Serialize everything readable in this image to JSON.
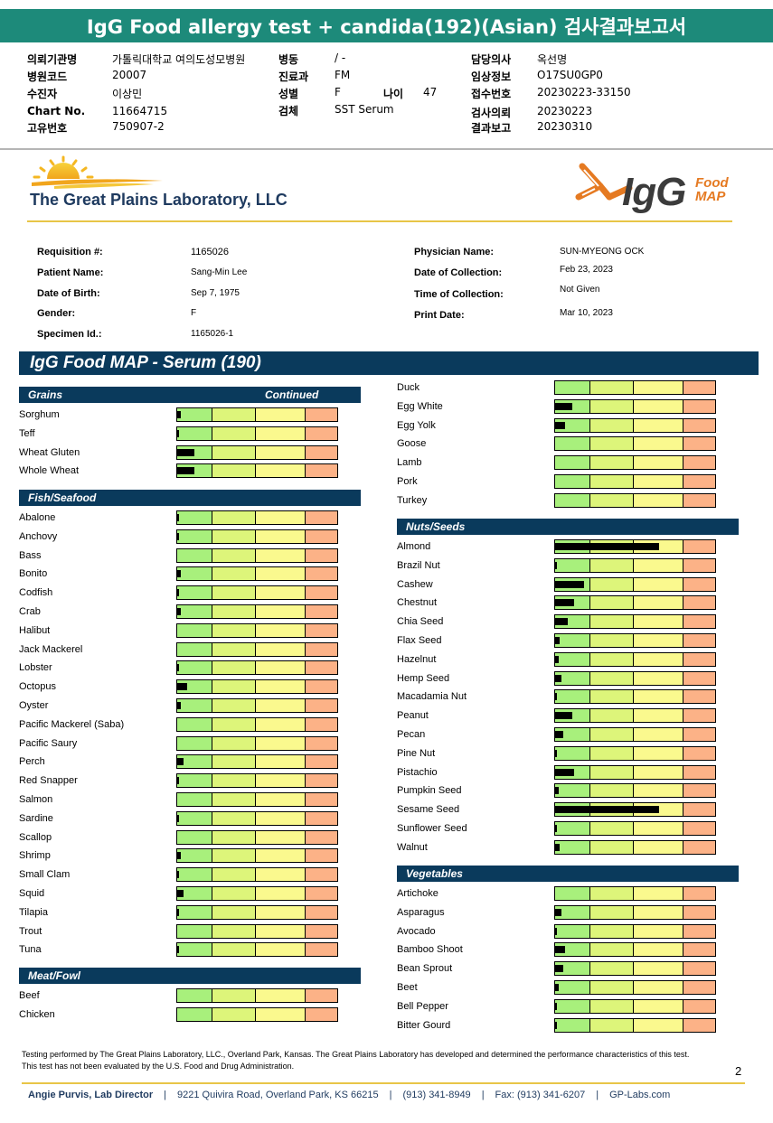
{
  "report_title": "IgG Food allergy test + candida(192)(Asian) 검사결과보고서",
  "header": {
    "col1": [
      {
        "label": "의뢰기관명",
        "value": "가톨릭대학교 여의도성모병원"
      },
      {
        "label": "병원코드",
        "value": "20007"
      },
      {
        "label": "수진자",
        "value": "이상민"
      },
      {
        "label": "Chart No.",
        "value": "11664715"
      },
      {
        "label": "고유번호",
        "value": "750907-2"
      }
    ],
    "col2": [
      {
        "label": "병동",
        "value": "/ -"
      },
      {
        "label": "진료과",
        "value": "FM"
      },
      {
        "label": "성별",
        "value": "F"
      },
      {
        "label": "검체",
        "value": "SST Serum"
      }
    ],
    "age_label": "나이",
    "age_value": "47",
    "col3": [
      {
        "label": "담당의사",
        "value": "옥선명"
      },
      {
        "label": "임상정보",
        "value": "O17SU0GP0"
      },
      {
        "label": "접수번호",
        "value": "20230223-33150"
      },
      {
        "label": "검사의뢰",
        "value": "20230223"
      },
      {
        "label": "결과보고",
        "value": "20230310"
      }
    ]
  },
  "lab_name": "The Great Plains Laboratory, LLC",
  "igg_logo": {
    "main": "IgG",
    "food": "Food",
    "map": "MAP"
  },
  "patient_info": {
    "left": [
      {
        "label": "Requisition #:",
        "value": "1165026"
      },
      {
        "label": "Patient Name:",
        "value": "Sang-Min Lee"
      },
      {
        "label": "Date of Birth:",
        "value": "Sep 7, 1975"
      },
      {
        "label": "Gender:",
        "value": "F"
      },
      {
        "label": "Specimen Id.:",
        "value": "1165026-1"
      }
    ],
    "right": [
      {
        "label": "Physician Name:",
        "value": "SUN-MYEONG OCK"
      },
      {
        "label": "Date of Collection:",
        "value": "Feb 23, 2023"
      },
      {
        "label": "Time of Collection:",
        "value": "Not Given"
      },
      {
        "label": "Print Date:",
        "value": "Mar 10, 2023"
      }
    ]
  },
  "panel_title": "IgG Food MAP - Serum (190)",
  "continued_label": "Continued",
  "sections": [
    {
      "title": "Grains",
      "continued": true,
      "column": "left",
      "items": [
        {
          "name": "Sorghum",
          "level": 0.02
        },
        {
          "name": "Teff",
          "level": 0.01
        },
        {
          "name": "Wheat Gluten",
          "level": 0.11
        },
        {
          "name": "Whole Wheat",
          "level": 0.11
        }
      ]
    },
    {
      "title": "Fish/Seafood",
      "continued": false,
      "column": "left",
      "items": [
        {
          "name": "Abalone",
          "level": 0.01
        },
        {
          "name": "Anchovy",
          "level": 0.01
        },
        {
          "name": "Bass",
          "level": 0.0
        },
        {
          "name": "Bonito",
          "level": 0.02
        },
        {
          "name": "Codfish",
          "level": 0.01
        },
        {
          "name": "Crab",
          "level": 0.02
        },
        {
          "name": "Halibut",
          "level": 0.0
        },
        {
          "name": "Jack Mackerel",
          "level": 0.0
        },
        {
          "name": "Lobster",
          "level": 0.01
        },
        {
          "name": "Octopus",
          "level": 0.06
        },
        {
          "name": "Oyster",
          "level": 0.02
        },
        {
          "name": "Pacific Mackerel (Saba)",
          "level": 0.0
        },
        {
          "name": "Pacific Saury",
          "level": 0.0
        },
        {
          "name": "Perch",
          "level": 0.04
        },
        {
          "name": "Red Snapper",
          "level": 0.01
        },
        {
          "name": "Salmon",
          "level": 0.0
        },
        {
          "name": "Sardine",
          "level": 0.01
        },
        {
          "name": "Scallop",
          "level": 0.0
        },
        {
          "name": "Shrimp",
          "level": 0.02
        },
        {
          "name": "Small Clam",
          "level": 0.01
        },
        {
          "name": "Squid",
          "level": 0.04
        },
        {
          "name": "Tilapia",
          "level": 0.01
        },
        {
          "name": "Trout",
          "level": 0.0
        },
        {
          "name": "Tuna",
          "level": 0.01
        }
      ]
    },
    {
      "title": "Meat/Fowl",
      "continued": false,
      "column": "left",
      "items": [
        {
          "name": "Beef",
          "level": 0.0
        },
        {
          "name": "Chicken",
          "level": 0.0
        },
        {
          "name": "Duck",
          "level": 0.0
        },
        {
          "name": "Egg White",
          "level": 0.11
        },
        {
          "name": "Egg Yolk",
          "level": 0.06
        },
        {
          "name": "Goose",
          "level": 0.0
        },
        {
          "name": "Lamb",
          "level": 0.0
        },
        {
          "name": "Pork",
          "level": 0.0
        },
        {
          "name": "Turkey",
          "level": 0.0
        }
      ]
    },
    {
      "title": "Nuts/Seeds",
      "continued": false,
      "column": "right",
      "items": [
        {
          "name": "Almond",
          "level": 0.65
        },
        {
          "name": "Brazil Nut",
          "level": 0.01
        },
        {
          "name": "Cashew",
          "level": 0.18
        },
        {
          "name": "Chestnut",
          "level": 0.12
        },
        {
          "name": "Chia Seed",
          "level": 0.08
        },
        {
          "name": "Flax Seed",
          "level": 0.03
        },
        {
          "name": "Hazelnut",
          "level": 0.02
        },
        {
          "name": "Hemp Seed",
          "level": 0.04
        },
        {
          "name": "Macadamia Nut",
          "level": 0.01
        },
        {
          "name": "Peanut",
          "level": 0.11
        },
        {
          "name": "Pecan",
          "level": 0.05
        },
        {
          "name": "Pine Nut",
          "level": 0.01
        },
        {
          "name": "Pistachio",
          "level": 0.12
        },
        {
          "name": "Pumpkin Seed",
          "level": 0.02
        },
        {
          "name": "Sesame Seed",
          "level": 0.65
        },
        {
          "name": "Sunflower Seed",
          "level": 0.01
        },
        {
          "name": "Walnut",
          "level": 0.03
        }
      ]
    },
    {
      "title": "Vegetables",
      "continued": false,
      "column": "right",
      "items": [
        {
          "name": "Artichoke",
          "level": 0.0
        },
        {
          "name": "Asparagus",
          "level": 0.04
        },
        {
          "name": "Avocado",
          "level": 0.01
        },
        {
          "name": "Bamboo Shoot",
          "level": 0.06
        },
        {
          "name": "Bean Sprout",
          "level": 0.05
        },
        {
          "name": "Beet",
          "level": 0.02
        },
        {
          "name": "Bell Pepper",
          "level": 0.01
        },
        {
          "name": "Bitter Gourd",
          "level": 0.01
        }
      ]
    }
  ],
  "footnote": "Testing performed by The Great Plains Laboratory, LLC., Overland Park, Kansas.  The Great Plains Laboratory has developed and determined the performance characteristics of this test.  This test has not been evaluated by the U.S.  Food and Drug Administration.",
  "page_number": "2",
  "footer": {
    "director": "Angie Purvis, Lab Director",
    "address": "9221 Quivira Road, Overland Park, KS 66215",
    "phone": "(913) 341-8949",
    "fax": "Fax: (913) 341-6207",
    "web": "GP-Labs.com"
  },
  "colors": {
    "title_bar": "#1d8a7a",
    "section_header": "#0a3a5c",
    "zone_low": "#a8f07c",
    "zone_moderate": "#ddf57a",
    "zone_elevated": "#faf98e",
    "zone_high": "#fcb287",
    "accent_gold": "#e8c547",
    "igg_orange": "#e57a22"
  }
}
